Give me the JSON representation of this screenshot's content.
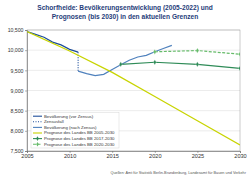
{
  "chart_data": {
    "type": "line",
    "title": "Schorfheide:  Bevölkerungsentwicklung (2005-2022) und",
    "subtitle": "Prognosen (bis 2030) in den aktuellen Grenzen",
    "notes": [
      "Quellen: Amt für Statistik Berlin-Brandenburg, Landesamt für Bauen und Verkehr"
    ],
    "xlim": [
      2005,
      2030
    ],
    "xticks": [
      2005,
      2010,
      2015,
      2020,
      2025,
      2030
    ],
    "ylim": [
      7500,
      10500
    ],
    "yticks": [
      {
        "value": 7500,
        "label": "7,500"
      },
      {
        "value": 8000,
        "label": "8,000"
      },
      {
        "value": 8500,
        "label": "8,500"
      },
      {
        "value": 9000,
        "label": "9,000"
      },
      {
        "value": 9500,
        "label": "9,500"
      },
      {
        "value": 10000,
        "label": "10,000"
      },
      {
        "value": 10500,
        "label": "10,500"
      }
    ],
    "grid": true,
    "legend": "lower left",
    "series": [
      {
        "name": "Bevölkerung (vor Zensus)",
        "color": "#1f4e9a",
        "line_style": "solid",
        "marker": "none",
        "x": [
          2005,
          2006,
          2007,
          2008,
          2009,
          2010,
          2011
        ],
        "values": [
          10460,
          10390,
          10320,
          10200,
          10130,
          10020,
          9950
        ]
      },
      {
        "name": "Zensusfall",
        "color": "#1f4e9a",
        "line_style": "dotted",
        "marker": "none",
        "x": [
          2011,
          2011
        ],
        "values": [
          9950,
          9480
        ]
      },
      {
        "name": "Bevölkerung (nach Zensus)",
        "color": "#4f81bd",
        "line_style": "solid",
        "marker": "none",
        "x": [
          2011,
          2012,
          2013,
          2014,
          2015,
          2016,
          2017,
          2018,
          2019,
          2020,
          2021,
          2022
        ],
        "values": [
          9480,
          9420,
          9370,
          9400,
          9520,
          9640,
          9750,
          9830,
          9870,
          9960,
          10040,
          10120
        ]
      },
      {
        "name": "Prognose des Landes BB 2005-2030",
        "color": "#c8d400",
        "line_style": "solid",
        "marker": "none",
        "x": [
          2005,
          2010,
          2015,
          2020,
          2025,
          2030
        ],
        "values": [
          10460,
          9980,
          9450,
          8850,
          8250,
          7650
        ]
      },
      {
        "name": "Prognose des Landes BB 2017-2030",
        "color": "#2e8b57",
        "line_style": "solid",
        "marker": "diamond",
        "x": [
          2016,
          2020,
          2025,
          2030
        ],
        "values": [
          9650,
          9700,
          9650,
          9550
        ]
      },
      {
        "name": "Prognose des Landes BB 2020-2030",
        "color": "#66bb6a",
        "line_style": "dashed",
        "marker": "diamond",
        "x": [
          2020,
          2025,
          2030
        ],
        "values": [
          9960,
          9990,
          9900
        ]
      }
    ]
  }
}
